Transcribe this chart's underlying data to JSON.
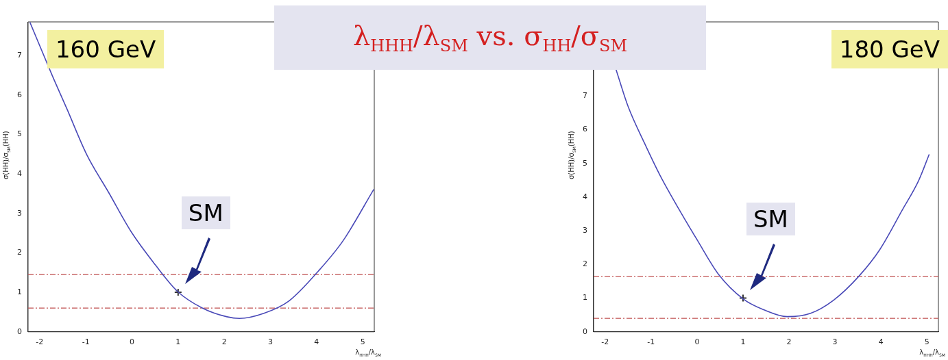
{
  "chart_data": [
    {
      "type": "line",
      "title": "λ$_{HHH}$/λ$_{SM}$ vs. σ$_{HH}$/σ$_{SM}$",
      "subtitle": "160 GeV",
      "xlabel": "λ$_{HHH}$/λ$_{SM}$",
      "ylabel": "σ(HH)/σ$_{SM}$(HH)",
      "xlim": [
        -2.25,
        5.25
      ],
      "xticks": [
        -2,
        -1,
        0,
        1,
        2,
        3,
        4,
        5
      ],
      "ylim": [
        0,
        7.85
      ],
      "yticks": [
        0,
        1,
        2,
        3,
        4,
        5,
        6,
        7
      ],
      "grid": false,
      "legend": false,
      "marker": "none",
      "series": [
        {
          "type": "line",
          "color": "#4a4ab8",
          "x": [
            -2.21,
            -1.73,
            -1.41,
            -0.98,
            -0.5,
            -0.02,
            0.51,
            0.99,
            1.53,
            2.06,
            2.33,
            2.86,
            3.4,
            4.04,
            4.57,
            5.24
          ],
          "values": [
            7.84,
            6.5,
            5.65,
            4.49,
            3.52,
            2.54,
            1.69,
            1.02,
            0.6,
            0.38,
            0.34,
            0.47,
            0.78,
            1.54,
            2.3,
            3.61
          ]
        },
        {
          "type": "scatter",
          "marker": "cross",
          "color": "#333333",
          "x": [
            1
          ],
          "values": [
            1
          ]
        }
      ],
      "ref_lines": [
        {
          "axis": "y",
          "value": 1.45,
          "color": "#c05050",
          "line_style": "dashdot"
        },
        {
          "axis": "y",
          "value": 0.6,
          "color": "#c05050",
          "line_style": "dashdot"
        }
      ],
      "annotations": [
        {
          "text": "SM",
          "x": 1,
          "y": 1
        }
      ]
    },
    {
      "type": "line",
      "subtitle": "180 GeV",
      "xlabel": "λ$_{HHH}$/λ$_{SM}$",
      "ylabel": "σ(HH)/σ$_{SM}$(HH)",
      "xlim": [
        -2.25,
        5.25
      ],
      "xticks": [
        -2,
        -1,
        0,
        1,
        2,
        3,
        4,
        5
      ],
      "ylim": [
        0,
        9.2
      ],
      "yticks": [
        0,
        1,
        2,
        3,
        4,
        5,
        6,
        7
      ],
      "grid": false,
      "legend": false,
      "marker": "none",
      "series": [
        {
          "type": "line",
          "color": "#4a4ab8",
          "x": [
            -1.77,
            -1.5,
            -1.15,
            -0.8,
            -0.39,
            0.01,
            0.46,
            1.01,
            1.46,
            1.96,
            2.47,
            2.97,
            3.52,
            3.97,
            4.47,
            4.82,
            5.05
          ],
          "values": [
            7.82,
            6.69,
            5.62,
            4.63,
            3.63,
            2.71,
            1.72,
            0.97,
            0.65,
            0.45,
            0.55,
            0.94,
            1.65,
            2.43,
            3.63,
            4.49,
            5.27
          ]
        },
        {
          "type": "scatter",
          "marker": "cross",
          "color": "#333333",
          "x": [
            1
          ],
          "values": [
            1
          ]
        }
      ],
      "ref_lines": [
        {
          "axis": "y",
          "value": 1.65,
          "color": "#c05050",
          "line_style": "dashdot"
        },
        {
          "axis": "y",
          "value": 0.4,
          "color": "#c05050",
          "line_style": "dashdot"
        }
      ],
      "annotations": [
        {
          "text": "SM",
          "x": 1,
          "y": 1
        }
      ]
    }
  ]
}
